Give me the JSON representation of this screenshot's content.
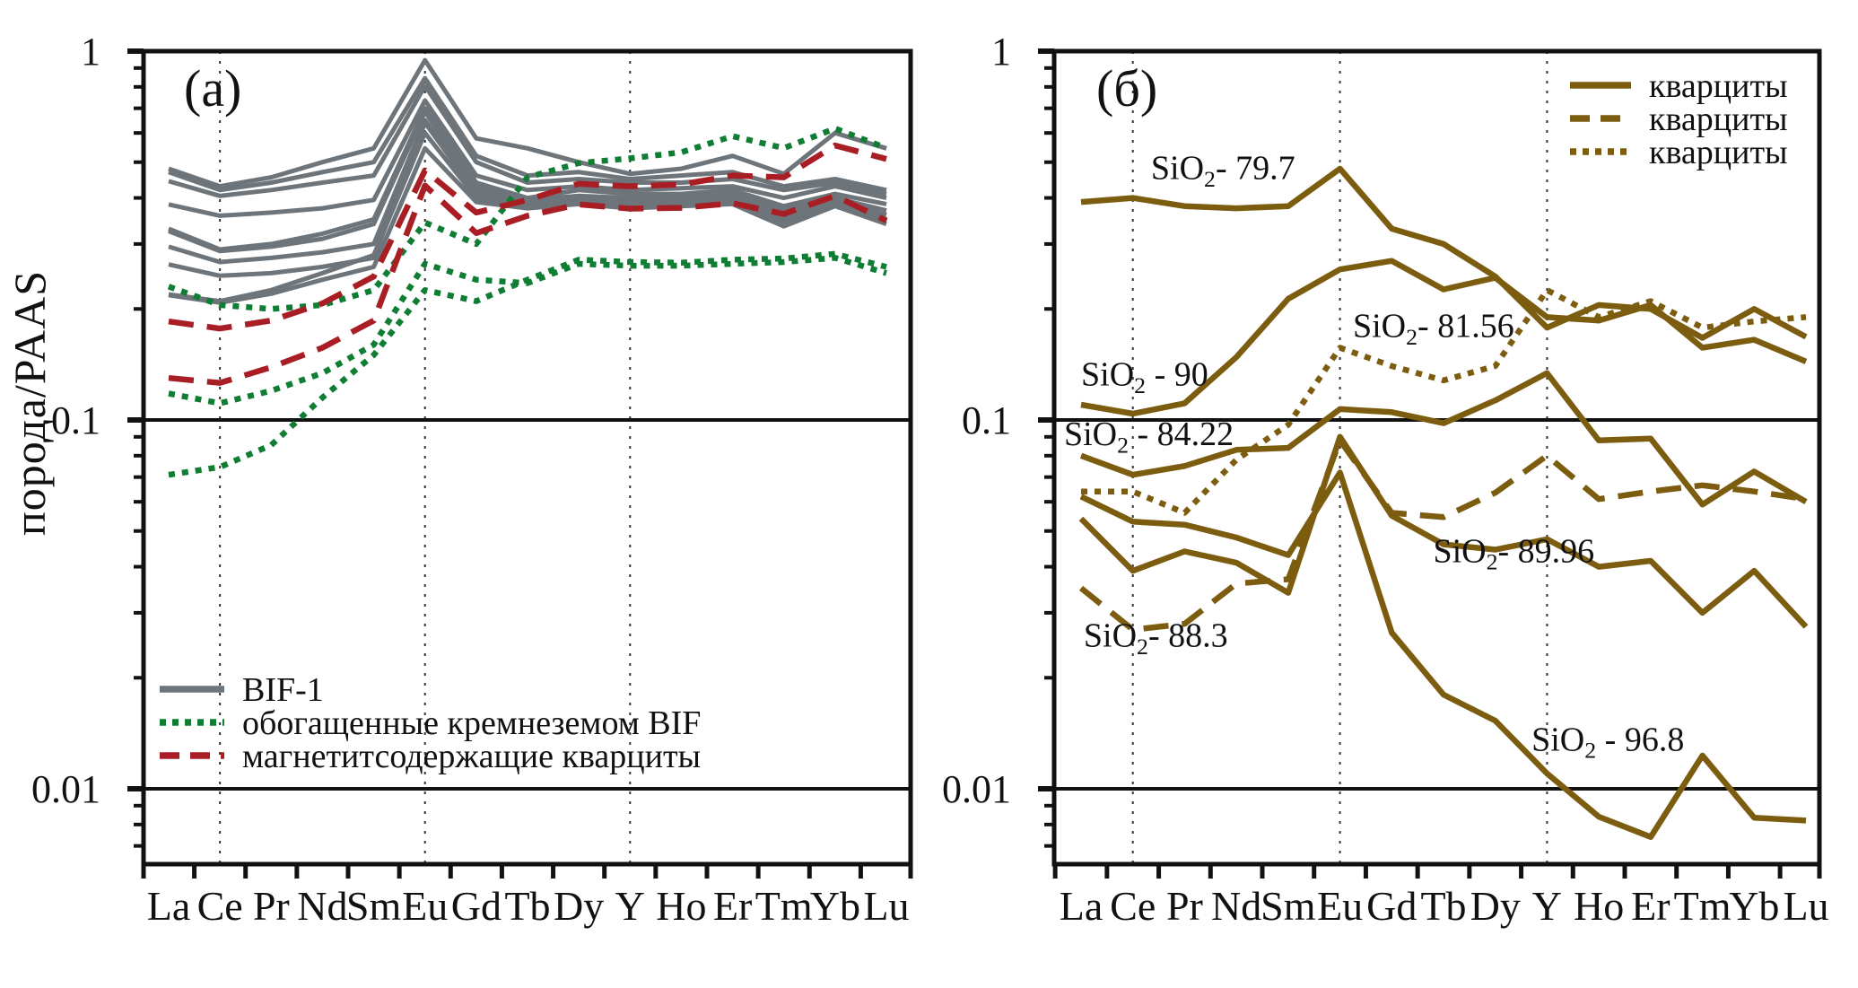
{
  "figure": {
    "ylabel": "порода/PAAS",
    "x_labels": [
      "La",
      "Ce",
      "Pr",
      "Nd",
      "Sm",
      "Eu",
      "Gd",
      "Tb",
      "Dy",
      "Y",
      "Ho",
      "Er",
      "Tm",
      "Yb",
      "Lu"
    ],
    "y_tick_labels": [
      "1",
      "0.1",
      "0.01"
    ],
    "colors": {
      "gray": "#6d757b",
      "green": "#0f7d33",
      "red": "#a91e24",
      "olive": "#7c5d10",
      "axis": "#111111"
    }
  },
  "chart_data": [
    {
      "type": "line",
      "panel_label": "(а)",
      "xlabel": "",
      "ylabel": "порода/PAAS",
      "log_y": true,
      "ylim": [
        0.0062,
        1
      ],
      "y_ticks": [
        1,
        0.1,
        0.01
      ],
      "categories": [
        "La",
        "Ce",
        "Pr",
        "Nd",
        "Sm",
        "Eu",
        "Gd",
        "Tb",
        "Dy",
        "Y",
        "Ho",
        "Er",
        "Tm",
        "Yb",
        "Lu"
      ],
      "grid_x_at": [
        "Ce",
        "Eu",
        "Y"
      ],
      "ref_lines": [
        0.1,
        0.01
      ],
      "legend": {
        "position": "bottom-left",
        "entries": [
          {
            "label": "BIF-1",
            "style": "solid",
            "color": "gray"
          },
          {
            "label": "обогащенные кремнеземом BIF",
            "style": "dotted",
            "color": "green"
          },
          {
            "label": "магнетитсодержащие кварциты",
            "style": "dashed",
            "color": "red"
          }
        ]
      },
      "series": [
        {
          "name": "BIF-1 №1",
          "group": "BIF-1",
          "style": "solid",
          "color": "gray",
          "values": [
            0.48,
            0.43,
            0.455,
            0.5,
            0.545,
            0.945,
            0.58,
            0.545,
            0.5,
            0.465,
            0.48,
            0.52,
            0.465,
            0.6,
            0.545
          ]
        },
        {
          "name": "BIF-1 №2",
          "group": "BIF-1",
          "style": "solid",
          "color": "gray",
          "values": [
            0.47,
            0.42,
            0.44,
            0.47,
            0.5,
            0.845,
            0.52,
            0.46,
            0.47,
            0.45,
            0.46,
            0.47,
            0.43,
            0.45,
            0.42
          ]
        },
        {
          "name": "BIF-1 №3",
          "group": "BIF-1",
          "style": "solid",
          "color": "gray",
          "values": [
            0.444,
            0.405,
            0.42,
            0.44,
            0.46,
            0.805,
            0.5,
            0.44,
            0.45,
            0.44,
            0.44,
            0.45,
            0.42,
            0.44,
            0.41
          ]
        },
        {
          "name": "BIF-1 №4",
          "group": "BIF-1",
          "style": "solid",
          "color": "gray",
          "values": [
            0.384,
            0.358,
            0.365,
            0.375,
            0.395,
            0.735,
            0.46,
            0.42,
            0.43,
            0.42,
            0.425,
            0.43,
            0.4,
            0.43,
            0.4
          ]
        },
        {
          "name": "BIF-1 №5",
          "group": "BIF-1",
          "style": "solid",
          "color": "gray",
          "values": [
            0.33,
            0.29,
            0.3,
            0.32,
            0.35,
            0.7,
            0.44,
            0.4,
            0.42,
            0.41,
            0.41,
            0.42,
            0.38,
            0.41,
            0.385
          ]
        },
        {
          "name": "BIF-1 №6",
          "group": "BIF-1",
          "style": "solid",
          "color": "gray",
          "values": [
            0.325,
            0.287,
            0.295,
            0.31,
            0.34,
            0.685,
            0.43,
            0.395,
            0.405,
            0.4,
            0.4,
            0.41,
            0.37,
            0.4,
            0.37
          ]
        },
        {
          "name": "BIF-1 №7",
          "group": "BIF-1",
          "style": "solid",
          "color": "gray",
          "values": [
            0.295,
            0.268,
            0.275,
            0.285,
            0.3,
            0.65,
            0.42,
            0.39,
            0.4,
            0.39,
            0.395,
            0.4,
            0.36,
            0.4,
            0.36
          ]
        },
        {
          "name": "BIF-1 №8",
          "group": "BIF-1",
          "style": "solid",
          "color": "gray",
          "values": [
            0.264,
            0.246,
            0.25,
            0.26,
            0.275,
            0.64,
            0.41,
            0.385,
            0.39,
            0.385,
            0.39,
            0.395,
            0.35,
            0.39,
            0.35
          ]
        },
        {
          "name": "BIF-1 №9",
          "group": "BIF-1",
          "style": "solid",
          "color": "gray",
          "values": [
            0.219,
            0.21,
            0.225,
            0.25,
            0.28,
            0.6,
            0.4,
            0.38,
            0.39,
            0.38,
            0.385,
            0.39,
            0.345,
            0.385,
            0.345
          ]
        },
        {
          "name": "BIF-1 №10",
          "group": "BIF-1",
          "style": "solid",
          "color": "gray",
          "values": [
            0.218,
            0.208,
            0.22,
            0.24,
            0.26,
            0.545,
            0.39,
            0.375,
            0.385,
            0.375,
            0.38,
            0.385,
            0.335,
            0.38,
            0.34
          ]
        },
        {
          "name": "обогащенные кремнеземом BIF №1",
          "group": "обогащенные кремнеземом BIF",
          "style": "dotted",
          "color": "green",
          "values": [
            0.23,
            0.205,
            0.2,
            0.205,
            0.225,
            0.343,
            0.3,
            0.455,
            0.497,
            0.512,
            0.532,
            0.588,
            0.546,
            0.617,
            0.546
          ]
        },
        {
          "name": "обогащенные кремнеземом BIF №2",
          "group": "обогащенные кремнеземом BIF",
          "style": "dotted",
          "color": "green",
          "values": [
            0.118,
            0.111,
            0.12,
            0.134,
            0.16,
            0.265,
            0.24,
            0.235,
            0.265,
            0.262,
            0.262,
            0.265,
            0.268,
            0.275,
            0.25
          ]
        },
        {
          "name": "обогащенные кремнеземом BIF №3",
          "group": "обогащенные кремнеземом BIF",
          "style": "dotted",
          "color": "green",
          "values": [
            0.071,
            0.0745,
            0.0855,
            0.115,
            0.15,
            0.225,
            0.21,
            0.24,
            0.272,
            0.268,
            0.267,
            0.272,
            0.274,
            0.282,
            0.26
          ]
        },
        {
          "name": "магнетитсодержащие кварциты №1",
          "group": "магнетитсодержащие кварциты",
          "style": "dashed",
          "color": "red",
          "values": [
            0.185,
            0.177,
            0.186,
            0.207,
            0.245,
            0.475,
            0.365,
            0.395,
            0.437,
            0.43,
            0.435,
            0.46,
            0.455,
            0.555,
            0.51
          ]
        },
        {
          "name": "магнетитсодержащие кварциты №2",
          "group": "магнетитсодержащие кварциты",
          "style": "dashed",
          "color": "red",
          "values": [
            0.13,
            0.126,
            0.139,
            0.157,
            0.186,
            0.432,
            0.321,
            0.358,
            0.384,
            0.374,
            0.376,
            0.387,
            0.362,
            0.405,
            0.347
          ]
        }
      ],
      "annotations": []
    },
    {
      "type": "line",
      "panel_label": "(б)",
      "xlabel": "",
      "ylabel": "порода/PAAS",
      "log_y": true,
      "ylim": [
        0.0062,
        1
      ],
      "y_ticks": [
        1,
        0.1,
        0.01
      ],
      "categories": [
        "La",
        "Ce",
        "Pr",
        "Nd",
        "Sm",
        "Eu",
        "Gd",
        "Tb",
        "Dy",
        "Y",
        "Ho",
        "Er",
        "Tm",
        "Yb",
        "Lu"
      ],
      "grid_x_at": [
        "Ce",
        "Eu",
        "Y"
      ],
      "ref_lines": [
        0.1,
        0.01
      ],
      "legend": {
        "position": "top-right",
        "entries": [
          {
            "label": "кварциты",
            "style": "solid",
            "color": "olive"
          },
          {
            "label": "кварциты",
            "style": "dashed",
            "color": "olive"
          },
          {
            "label": "кварциты",
            "style": "dotted",
            "color": "olive"
          }
        ]
      },
      "series": [
        {
          "name": "SiO2 - 79.7",
          "style": "solid",
          "color": "olive",
          "values": [
            0.39,
            0.4,
            0.38,
            0.375,
            0.38,
            0.48,
            0.33,
            0.3,
            0.245,
            0.178,
            0.205,
            0.2,
            0.167,
            0.2,
            0.168
          ]
        },
        {
          "name": "SiO2 - 90",
          "style": "solid",
          "color": "olive",
          "values": [
            0.11,
            0.104,
            0.111,
            0.148,
            0.213,
            0.256,
            0.27,
            0.226,
            0.243,
            0.19,
            0.186,
            0.205,
            0.157,
            0.165,
            0.144
          ]
        },
        {
          "name": "SiO2 - 81.56",
          "style": "dotted",
          "color": "olive",
          "values": [
            0.064,
            0.064,
            0.056,
            0.078,
            0.097,
            0.157,
            0.14,
            0.128,
            0.14,
            0.225,
            0.19,
            0.21,
            0.178,
            0.185,
            0.19
          ]
        },
        {
          "name": "SiO2 - 84.22",
          "style": "solid",
          "color": "olive",
          "values": [
            0.08,
            0.071,
            0.075,
            0.083,
            0.084,
            0.107,
            0.105,
            0.098,
            0.113,
            0.134,
            0.088,
            0.089,
            0.059,
            0.0725,
            0.06
          ]
        },
        {
          "name": "SiO2 - 88.3",
          "style": "dashed",
          "color": "olive",
          "values": [
            0.035,
            0.027,
            0.028,
            0.036,
            0.037,
            0.088,
            0.056,
            0.0545,
            0.0635,
            0.08,
            0.061,
            0.064,
            0.0665,
            0.064,
            0.061
          ]
        },
        {
          "name": "SiO2 - 89.96",
          "style": "solid",
          "color": "olive",
          "values": [
            0.054,
            0.039,
            0.044,
            0.041,
            0.034,
            0.09,
            0.055,
            0.046,
            0.0445,
            0.0475,
            0.04,
            0.0415,
            0.03,
            0.039,
            0.0275
          ]
        },
        {
          "name": "SiO2 - 96.8",
          "style": "solid",
          "color": "olive",
          "values": [
            0.062,
            0.053,
            0.052,
            0.048,
            0.043,
            0.072,
            0.0265,
            0.018,
            0.0153,
            0.011,
            0.0084,
            0.0074,
            0.0123,
            0.00835,
            0.0082
          ]
        }
      ],
      "annotations": [
        {
          "text": "SiO2- 79.7",
          "xi": 1.35,
          "v": 0.45
        },
        {
          "text": "SiO2 - 90",
          "xi": 0.0,
          "v": 0.124
        },
        {
          "text": "SiO2- 81.56",
          "xi": 5.25,
          "v": 0.168
        },
        {
          "text": "SiO2 - 84.22",
          "xi": -0.33,
          "v": 0.0855
        },
        {
          "text": "SiO2- 88.3",
          "xi": 0.05,
          "v": 0.0243
        },
        {
          "text": "SiO2- 89.96",
          "xi": 6.8,
          "v": 0.0412
        },
        {
          "text": "SiO2 - 96.8",
          "xi": 8.7,
          "v": 0.0127
        }
      ]
    }
  ]
}
